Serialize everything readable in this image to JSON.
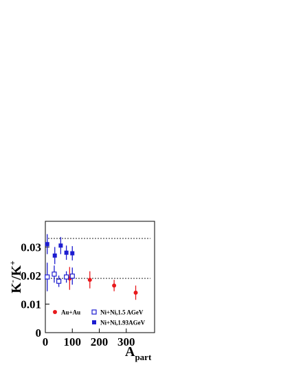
{
  "chart_data": {
    "type": "scatter",
    "y_label": [
      "K",
      "-",
      "/K",
      "+"
    ],
    "x_label": [
      "A",
      "part"
    ],
    "xlim": [
      0,
      405
    ],
    "ylim": [
      0,
      0.039
    ],
    "xticks": [
      0,
      100,
      200,
      300
    ],
    "yticks": [
      0,
      0.01,
      0.02,
      0.03
    ],
    "reference_lines": [
      0.033,
      0.019
    ],
    "series": [
      {
        "name": "Au+Au",
        "color": "#e8191c",
        "marker": "circle",
        "x": [
          90,
          165,
          255,
          335
        ],
        "values": [
          0.019,
          0.0185,
          0.0165,
          0.014
        ],
        "errors": [
          0.004,
          0.003,
          0.002,
          0.0025
        ]
      },
      {
        "name": "Ni+Ni,1.5 AGeV",
        "color": "#1c1cd0",
        "marker": "open-square",
        "x": [
          7,
          33,
          50,
          78,
          100
        ],
        "values": [
          0.0195,
          0.0205,
          0.018,
          0.0195,
          0.0198
        ],
        "errors": [
          0.005,
          0.003,
          0.002,
          0.002,
          0.003
        ]
      },
      {
        "name": "Ni+Ni,1.93AGeV",
        "color": "#1c1cd0",
        "marker": "square",
        "x": [
          7,
          35,
          57,
          78,
          100
        ],
        "values": [
          0.031,
          0.027,
          0.0305,
          0.028,
          0.0278
        ],
        "errors": [
          0.0035,
          0.003,
          0.003,
          0.0025,
          0.0025
        ]
      }
    ]
  }
}
